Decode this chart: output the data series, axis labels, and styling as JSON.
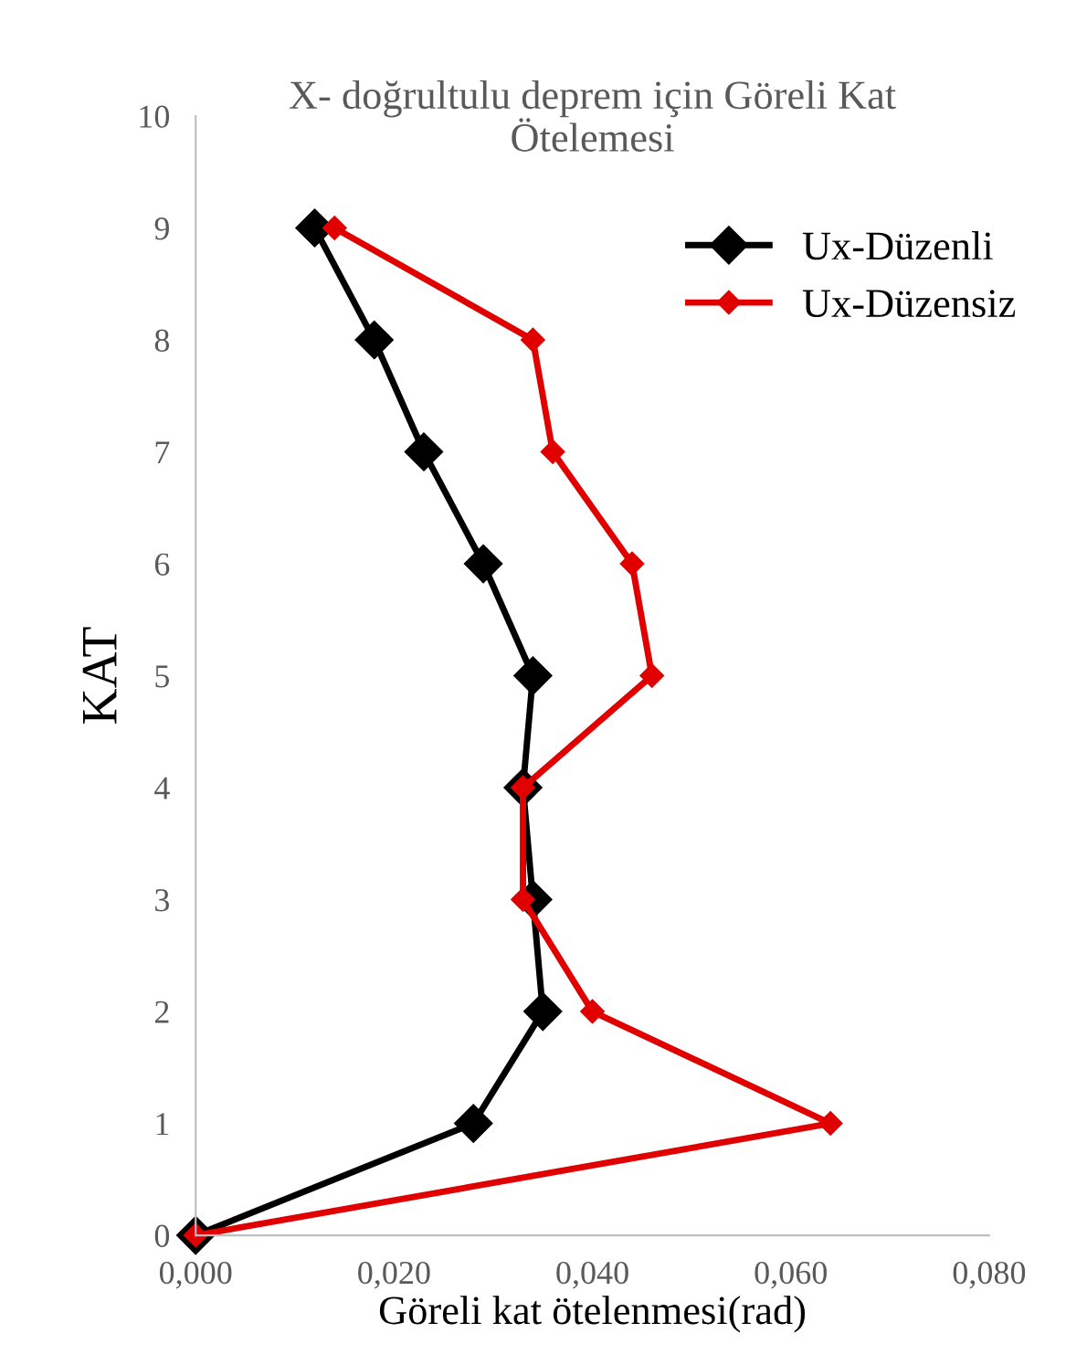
{
  "chart_data": {
    "type": "line",
    "title": "X- doğrultulu deprem için Göreli Kat\nÖtelemesi",
    "xlabel": "Göreli kat ötelenmesi(rad)",
    "ylabel": "KAT",
    "series": [
      {
        "name": "Ux-Düzenli",
        "color": "#000000",
        "x": [
          0.0,
          0.028,
          0.035,
          0.034,
          0.033,
          0.034,
          0.029,
          0.023,
          0.018,
          0.012
        ],
        "values": [
          0,
          1,
          2,
          3,
          4,
          5,
          6,
          7,
          8,
          9
        ]
      },
      {
        "name": "Ux-Düzensiz",
        "color": "#e00000",
        "x": [
          0.0,
          0.064,
          0.04,
          0.033,
          0.033,
          0.046,
          0.044,
          0.036,
          0.034,
          0.014
        ],
        "values": [
          0,
          1,
          2,
          3,
          4,
          5,
          6,
          7,
          8,
          9
        ]
      }
    ],
    "xlim": [
      0,
      0.08
    ],
    "xticks": [
      {
        "value": 0,
        "label": "0,000"
      },
      {
        "value": 0.02,
        "label": "0,020"
      },
      {
        "value": 0.04,
        "label": "0,040"
      },
      {
        "value": 0.06,
        "label": "0,060"
      },
      {
        "value": 0.08,
        "label": "0,080"
      }
    ],
    "ylim": [
      0,
      10
    ],
    "yticks": [
      0,
      1,
      2,
      3,
      4,
      5,
      6,
      7,
      8,
      9,
      10
    ],
    "grid": false,
    "legend": "top right",
    "marker": "diamond",
    "line_style": "solid"
  }
}
